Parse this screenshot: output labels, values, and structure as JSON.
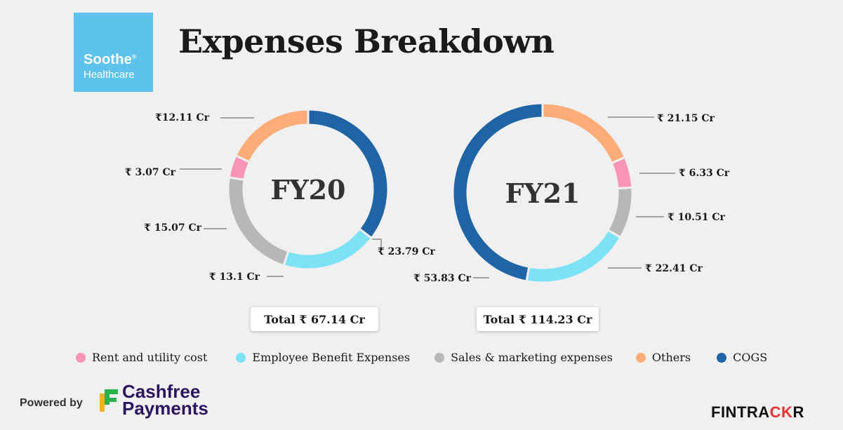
{
  "header": {
    "title": "Expenses Breakdown",
    "logo_line1": "Soothe",
    "logo_trademark": "®",
    "logo_line2": "Healthcare"
  },
  "chart_data": [
    {
      "type": "pie",
      "center_label": "FY20",
      "total_label": "Total ₹ 67.14 Cr",
      "labels": [
        "COGS",
        "Employee Benefit Expenses",
        "Sales & marketing expenses",
        "Rent and utility cost",
        "Others"
      ],
      "values": [
        23.79,
        13.1,
        15.07,
        3.07,
        12.11
      ],
      "value_labels": [
        "₹ 23.79 Cr",
        "₹ 13.1 Cr",
        "₹ 15.07 Cr",
        "₹ 3.07 Cr",
        "₹12.11 Cr"
      ],
      "colors": [
        "#1f64a5",
        "#7de2f6",
        "#b7b7b7",
        "#f994b9",
        "#fcac77"
      ]
    },
    {
      "type": "pie",
      "center_label": "FY21",
      "total_label": "Total ₹ 114.23 Cr",
      "labels": [
        "Others",
        "Rent and utility cost",
        "Sales & marketing expenses",
        "Employee Benefit Expenses",
        "COGS"
      ],
      "values": [
        21.15,
        6.33,
        10.51,
        22.41,
        53.83
      ],
      "value_labels": [
        "₹ 21.15 Cr",
        "₹ 6.33 Cr",
        "₹ 10.51 Cr",
        "₹ 22.41 Cr",
        "₹ 53.83 Cr"
      ],
      "colors": [
        "#fcac77",
        "#f994b9",
        "#b7b7b7",
        "#7de2f6",
        "#1f64a5"
      ]
    }
  ],
  "legend": [
    {
      "label": "Rent and utility cost",
      "color": "#f994b9"
    },
    {
      "label": "Employee Benefit Expenses",
      "color": "#7de2f6"
    },
    {
      "label": "Sales & marketing expenses",
      "color": "#b7b7b7"
    },
    {
      "label": "Others",
      "color": "#fcac77"
    },
    {
      "label": "COGS",
      "color": "#1f64a5"
    }
  ],
  "footer": {
    "powered_by": "Powered by",
    "cashfree_line1": "Cashfree",
    "cashfree_line2": "Payments",
    "fintrackr_main": "FINTRA",
    "fintrackr_accent": "CK",
    "fintrackr_end": "R"
  }
}
